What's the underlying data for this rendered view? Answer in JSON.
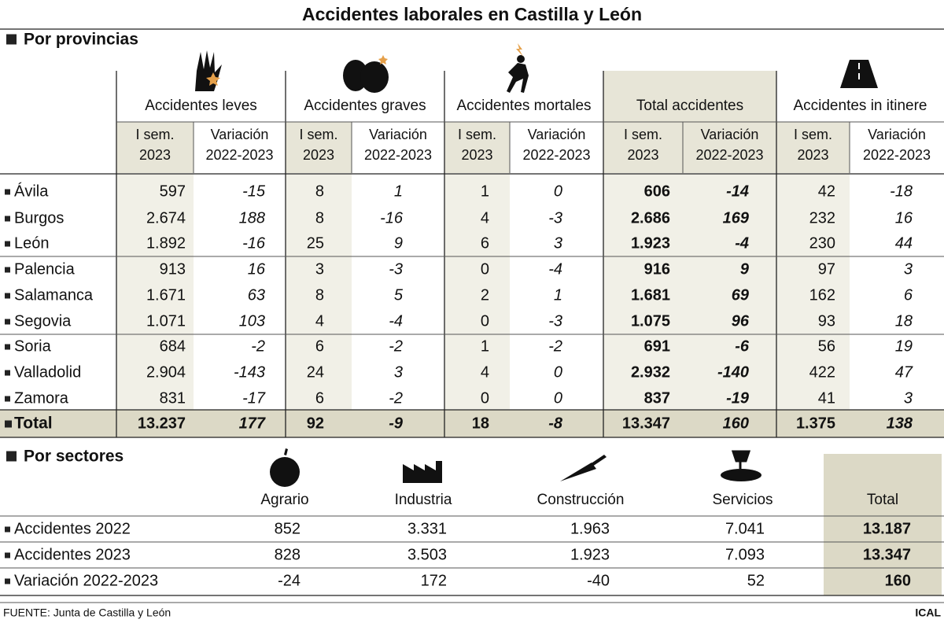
{
  "title": "Accidentes laborales en Castilla y León",
  "provincias": {
    "heading": "Por provincias",
    "groups": [
      {
        "label": "Accidentes leves",
        "columns": [
          [
            "I sem.",
            "2023"
          ],
          [
            "Variación",
            "2022-2023"
          ]
        ]
      },
      {
        "label": "Accidentes graves",
        "columns": [
          [
            "I sem.",
            "2023"
          ],
          [
            "Variación",
            "2022-2023"
          ]
        ]
      },
      {
        "label": "Accidentes mortales",
        "columns": [
          [
            "I sem.",
            "2023"
          ],
          [
            "Variación",
            "2022-2023"
          ]
        ]
      },
      {
        "label": "Total accidentes",
        "columns": [
          [
            "I sem.",
            "2023"
          ],
          [
            "Variación",
            "2022-2023"
          ]
        ]
      },
      {
        "label": "Accidentes in itinere",
        "columns": [
          [
            "I sem.",
            "2023"
          ],
          [
            "Variación",
            "2022-2023"
          ]
        ]
      }
    ],
    "rows": [
      {
        "name": "Ávila",
        "values": [
          "597",
          "-15",
          "8",
          "1",
          "1",
          "0",
          "606",
          "-14",
          "42",
          "-18"
        ]
      },
      {
        "name": "Burgos",
        "values": [
          "2.674",
          "188",
          "8",
          "-16",
          "4",
          "-3",
          "2.686",
          "169",
          "232",
          "16"
        ]
      },
      {
        "name": "León",
        "values": [
          "1.892",
          "-16",
          "25",
          "9",
          "6",
          "3",
          "1.923",
          "-4",
          "230",
          "44"
        ]
      },
      {
        "name": "Palencia",
        "values": [
          "913",
          "16",
          "3",
          "-3",
          "0",
          "-4",
          "916",
          "9",
          "97",
          "3"
        ]
      },
      {
        "name": "Salamanca",
        "values": [
          "1.671",
          "63",
          "8",
          "5",
          "2",
          "1",
          "1.681",
          "69",
          "162",
          "6"
        ]
      },
      {
        "name": "Segovia",
        "values": [
          "1.071",
          "103",
          "4",
          "-4",
          "0",
          "-3",
          "1.075",
          "96",
          "93",
          "18"
        ]
      },
      {
        "name": "Soria",
        "values": [
          "684",
          "-2",
          "6",
          "-2",
          "1",
          "-2",
          "691",
          "-6",
          "56",
          "19"
        ]
      },
      {
        "name": "Valladolid",
        "values": [
          "2.904",
          "-143",
          "24",
          "3",
          "4",
          "0",
          "2.932",
          "-140",
          "422",
          "47"
        ]
      },
      {
        "name": "Zamora",
        "values": [
          "831",
          "-17",
          "6",
          "-2",
          "0",
          "0",
          "837",
          "-19",
          "41",
          "3"
        ]
      }
    ],
    "total": {
      "name": "Total",
      "values": [
        "13.237",
        "177",
        "92",
        "-9",
        "18",
        "-8",
        "13.347",
        "160",
        "1.375",
        "138"
      ]
    }
  },
  "sectores": {
    "heading": "Por sectores",
    "columns": [
      "Agrario",
      "Industria",
      "Construcción",
      "Servicios",
      "Total"
    ],
    "rows": [
      {
        "name": "Accidentes 2022",
        "values": [
          "852",
          "3.331",
          "1.963",
          "7.041",
          "13.187"
        ]
      },
      {
        "name": "Accidentes 2023",
        "values": [
          "828",
          "3.503",
          "1.923",
          "7.093",
          "13.347"
        ]
      },
      {
        "name": "Variación 2022-2023",
        "values": [
          "-24",
          "172",
          "-40",
          "52",
          "160"
        ]
      }
    ]
  },
  "footer": {
    "source": "FUENTE: Junta de Castilla y León",
    "credit": "ICAL"
  }
}
